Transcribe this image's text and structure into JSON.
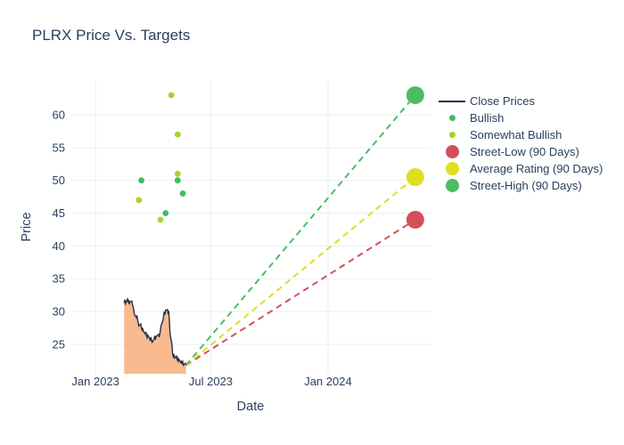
{
  "chart_data": {
    "type": "line+scatter",
    "title": "PLRX Price Vs. Targets",
    "xlabel": "Date",
    "ylabel": "Price",
    "x_range": [
      "2022-11-24",
      "2024-06-10"
    ],
    "y_range": [
      20.5,
      65.3
    ],
    "x_ticks": [
      {
        "label": "Jan 2023",
        "date": "2023-01-01"
      },
      {
        "label": "Jul 2023",
        "date": "2023-07-01"
      },
      {
        "label": "Jan 2024",
        "date": "2024-01-01"
      }
    ],
    "y_ticks": [
      25,
      30,
      35,
      40,
      45,
      50,
      55,
      60
    ],
    "grid": true,
    "legend_position": "right",
    "close_prices": {
      "name": "Close Prices",
      "dates": [
        "2023-02-15",
        "2023-02-16",
        "2023-02-17",
        "2023-02-20",
        "2023-02-21",
        "2023-02-22",
        "2023-02-23",
        "2023-02-24",
        "2023-02-27",
        "2023-02-28",
        "2023-03-01",
        "2023-03-02",
        "2023-03-03",
        "2023-03-06",
        "2023-03-07",
        "2023-03-08",
        "2023-03-09",
        "2023-03-10",
        "2023-03-13",
        "2023-03-14",
        "2023-03-15",
        "2023-03-16",
        "2023-03-17",
        "2023-03-20",
        "2023-03-21",
        "2023-03-22",
        "2023-03-23",
        "2023-03-24",
        "2023-03-27",
        "2023-03-28",
        "2023-03-29",
        "2023-03-30",
        "2023-03-31",
        "2023-04-03",
        "2023-04-04",
        "2023-04-05",
        "2023-04-06",
        "2023-04-10",
        "2023-04-11",
        "2023-04-12",
        "2023-04-13",
        "2023-04-14",
        "2023-04-17",
        "2023-04-18",
        "2023-04-19",
        "2023-04-20",
        "2023-04-21",
        "2023-04-24",
        "2023-04-25",
        "2023-04-26",
        "2023-04-27",
        "2023-04-28",
        "2023-05-01",
        "2023-05-02",
        "2023-05-03",
        "2023-05-04",
        "2023-05-05",
        "2023-05-08",
        "2023-05-09",
        "2023-05-10",
        "2023-05-11",
        "2023-05-12",
        "2023-05-15",
        "2023-05-16",
        "2023-05-17",
        "2023-05-18",
        "2023-05-19",
        "2023-05-22",
        "2023-05-23"
      ],
      "values": [
        31.3,
        31.8,
        31.2,
        31.9,
        31.4,
        31.8,
        31.1,
        31.5,
        31.6,
        31.0,
        30.8,
        30.2,
        29.6,
        29.1,
        29.4,
        28.8,
        28.3,
        27.8,
        28.1,
        27.5,
        27.2,
        27.5,
        27.0,
        26.6,
        26.9,
        26.3,
        26.0,
        26.4,
        25.9,
        25.5,
        26.1,
        25.6,
        25.3,
        25.8,
        26.3,
        25.7,
        26.2,
        26.5,
        26.1,
        26.6,
        27.2,
        27.9,
        28.7,
        29.4,
        30.0,
        29.5,
        30.2,
        30.3,
        29.6,
        30.1,
        28.6,
        26.5,
        25.0,
        23.6,
        23.2,
        23.5,
        22.9,
        23.2,
        22.7,
        22.9,
        22.4,
        22.7,
        22.2,
        22.5,
        22.0,
        22.3,
        21.8,
        22.1,
        21.8
      ]
    },
    "ratings": {
      "bullish": {
        "name": "Bullish",
        "points": [
          {
            "date": "2023-03-14",
            "price": 50
          },
          {
            "date": "2023-04-21",
            "price": 45
          },
          {
            "date": "2023-05-10",
            "price": 50
          },
          {
            "date": "2023-05-18",
            "price": 48
          }
        ]
      },
      "somewhat_bullish": {
        "name": "Somewhat Bullish",
        "points": [
          {
            "date": "2023-03-10",
            "price": 47
          },
          {
            "date": "2023-04-13",
            "price": 44
          },
          {
            "date": "2023-04-30",
            "price": 63
          },
          {
            "date": "2023-05-10",
            "price": 51
          },
          {
            "date": "2023-05-10",
            "price": 57
          }
        ]
      }
    },
    "targets": {
      "date": "2024-05-17",
      "from": {
        "date": "2023-05-23",
        "price": 21.8
      },
      "street_low": {
        "name": "Street-Low (90 Days)",
        "price": 44
      },
      "average": {
        "name": "Average Rating (90 Days)",
        "price": 50.5
      },
      "street_high": {
        "name": "Street-High (90 Days)",
        "price": 63
      }
    },
    "legend": [
      {
        "id": "close-prices",
        "label": "Close Prices",
        "marker": "line",
        "color": "close_line"
      },
      {
        "id": "bullish",
        "label": "Bullish",
        "marker": "dot",
        "color": "bullish"
      },
      {
        "id": "somewhat-bullish",
        "label": "Somewhat Bullish",
        "marker": "dot",
        "color": "somewhat_bullish"
      },
      {
        "id": "street-low",
        "label": "Street-Low (90 Days)",
        "marker": "circle",
        "color": "street_low"
      },
      {
        "id": "average-rating",
        "label": "Average Rating (90 Days)",
        "marker": "circle",
        "color": "average"
      },
      {
        "id": "street-high",
        "label": "Street-High (90 Days)",
        "marker": "circle",
        "color": "street_high"
      }
    ],
    "colors": {
      "close_line": "#233049",
      "close_fill": "#f9ba90",
      "bullish": "#43bb5d",
      "somewhat_bullish": "#a3d42e",
      "street_low": "#d25158",
      "average": "#dedf21",
      "street_high": "#4abd62",
      "grid": "#e9eef6",
      "text": "#2a3f5f"
    }
  }
}
